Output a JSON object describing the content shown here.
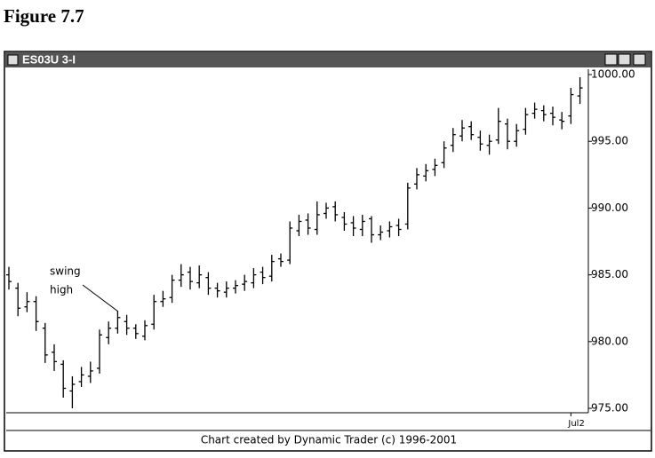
{
  "figure_title": "Figure 7.7",
  "window_title": "ES03U 3-I",
  "chart_data": {
    "type": "ohlc",
    "annotation": [
      "swing",
      "high"
    ],
    "footer": "Chart created by Dynamic Trader (c) 1996-2001",
    "color": "#000000",
    "categories": [
      null,
      null,
      null,
      null,
      null,
      null,
      null,
      null,
      null,
      null,
      null,
      null,
      null,
      null,
      null,
      null,
      null,
      null,
      null,
      null,
      null,
      null,
      null,
      null,
      null,
      null,
      null,
      null,
      null,
      null,
      null,
      null,
      null,
      null,
      null,
      null,
      null,
      null,
      null,
      null,
      null,
      null,
      null,
      null,
      null,
      null,
      null,
      null,
      null,
      null,
      null,
      null,
      null,
      null,
      null,
      null,
      null,
      null,
      null,
      null,
      null,
      null,
      "Jul2",
      null
    ],
    "open": [
      985,
      984,
      982.6,
      983,
      981,
      979.2,
      978.3,
      976.3,
      977,
      977.4,
      978,
      980.3,
      981,
      981.5,
      981,
      980.4,
      981.3,
      983,
      983.3,
      984.6,
      985.2,
      984.4,
      984.8,
      984,
      983.7,
      984,
      984.3,
      984.4,
      985.2,
      984.9,
      986.2,
      986.1,
      988.3,
      989.1,
      988.4,
      989.6,
      990.1,
      989.3,
      988.9,
      988.4,
      989.2,
      988,
      988.3,
      988.7,
      988.8,
      991.8,
      992.4,
      992.9,
      993.4,
      994.7,
      995.4,
      996.1,
      995.3,
      994.7,
      995.1,
      996.3,
      995,
      995.9,
      997.1,
      997.3,
      997.1,
      996.6,
      996.9,
      998.4
    ],
    "high": [
      985.6,
      984.4,
      983.7,
      983.4,
      981.4,
      979.8,
      978.6,
      977.4,
      978.1,
      978.5,
      980.9,
      981.5,
      982.3,
      982,
      981.3,
      981.6,
      983.5,
      983.8,
      985,
      985.8,
      985.6,
      985.7,
      985.2,
      984.4,
      984.5,
      984.6,
      985,
      985.5,
      985.6,
      986.5,
      986.6,
      989,
      989.5,
      989.6,
      990.5,
      990.4,
      990.5,
      989.7,
      989.4,
      989.5,
      989.4,
      988.7,
      989,
      989.2,
      991.9,
      993,
      993.3,
      993.7,
      995,
      996,
      996.6,
      996.5,
      995.8,
      995.5,
      997.5,
      996.7,
      996.3,
      997.5,
      997.9,
      997.7,
      997.6,
      997.2,
      999,
      999.8
    ],
    "low": [
      983.9,
      981.9,
      982.2,
      980.8,
      978.4,
      977.8,
      975.8,
      975,
      976.6,
      976.9,
      977.6,
      979.8,
      980.6,
      980.5,
      980.2,
      980.1,
      980.9,
      982.6,
      982.9,
      984.1,
      983.9,
      984,
      983.5,
      983.3,
      983.3,
      983.6,
      983.8,
      984,
      984.3,
      984.5,
      985.6,
      985.8,
      987.9,
      988,
      988,
      989.2,
      989,
      988.3,
      987.9,
      987.9,
      987.4,
      987.6,
      987.8,
      987.9,
      988.4,
      991.4,
      992,
      992.4,
      993,
      994.2,
      995,
      995.1,
      994.3,
      994,
      994.8,
      994.4,
      994.6,
      995.5,
      996.7,
      996.5,
      996.2,
      995.9,
      996.3,
      997.8
    ],
    "close": [
      984.5,
      982.5,
      983,
      981.5,
      979,
      978.5,
      976.5,
      976.8,
      977.5,
      977.8,
      980.5,
      981,
      981.8,
      981,
      980.6,
      981.2,
      983,
      983.2,
      984.6,
      985,
      984.5,
      985,
      984,
      983.8,
      984,
      984.2,
      984.5,
      985,
      984.8,
      986,
      986,
      988.5,
      989,
      988.5,
      989.5,
      990,
      989.5,
      988.8,
      988.5,
      989,
      988,
      988.2,
      988.6,
      988.4,
      991.5,
      992.5,
      992.8,
      993.2,
      994.5,
      995.5,
      996,
      995.5,
      994.8,
      995,
      996.5,
      995,
      995.8,
      997,
      997.4,
      997,
      996.8,
      996.5,
      998.5,
      999
    ],
    "ylim": [
      974.67,
      1000.4
    ],
    "yticks": [
      {
        "value": 975,
        "label": "975.00"
      },
      {
        "value": 980,
        "label": "980.00"
      },
      {
        "value": 985,
        "label": "985.00"
      },
      {
        "value": 990,
        "label": "990.00"
      },
      {
        "value": 995,
        "label": "995.00"
      },
      {
        "value": 1000,
        "label": "1000.00"
      }
    ]
  }
}
